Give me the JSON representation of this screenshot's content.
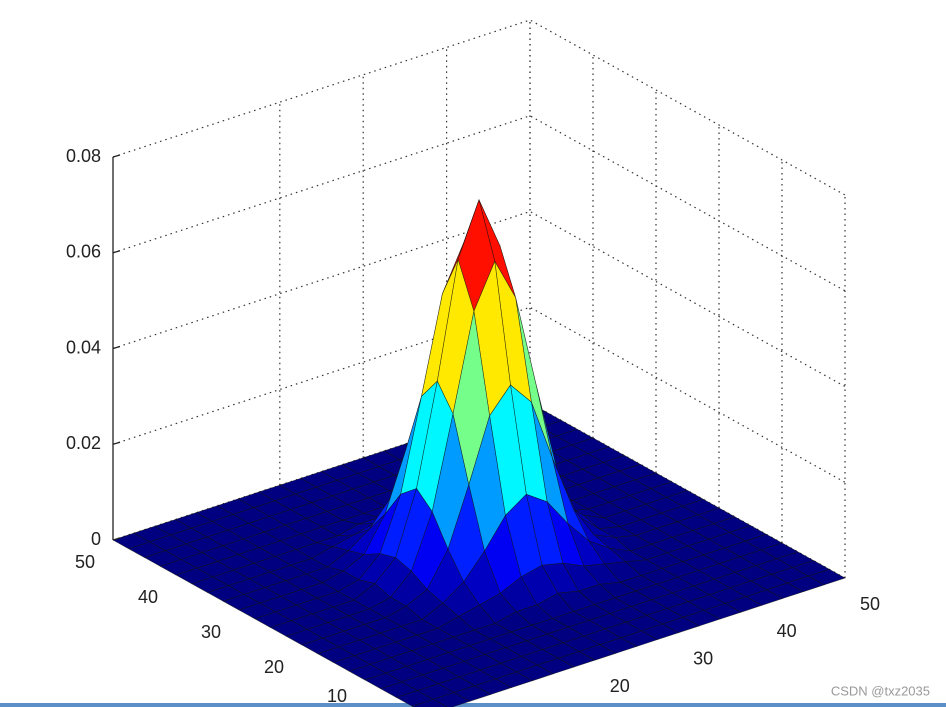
{
  "chart_data": {
    "type": "surface",
    "colormap": "jet",
    "grid": true,
    "x": [
      0,
      2.5,
      5,
      7.5,
      10,
      12.5,
      15,
      17.5,
      20,
      22.5,
      25,
      27.5,
      30,
      32.5,
      35,
      37.5,
      40,
      42.5,
      45,
      47.5,
      50
    ],
    "y": [
      0,
      2.5,
      5,
      7.5,
      10,
      12.5,
      15,
      17.5,
      20,
      22.5,
      25,
      27.5,
      30,
      32.5,
      35,
      37.5,
      40,
      42.5,
      45,
      47.5,
      50
    ],
    "z": [
      [
        0,
        0,
        0,
        0,
        0,
        0,
        0,
        0,
        0,
        0,
        0,
        0,
        0,
        0,
        0,
        0,
        0,
        0,
        0,
        0,
        0
      ],
      [
        0,
        0,
        0,
        0,
        0,
        0,
        0,
        0,
        0,
        0,
        0,
        0,
        0,
        0,
        0,
        0,
        0,
        0,
        0,
        0,
        0
      ],
      [
        0,
        0,
        0,
        0,
        0,
        0,
        0,
        0,
        0,
        0,
        0,
        0,
        0,
        0,
        0,
        0,
        0,
        0,
        0,
        0,
        0
      ],
      [
        0,
        0,
        0,
        0,
        0,
        0,
        0,
        0,
        0,
        0,
        0,
        0,
        0,
        0,
        0,
        0,
        0,
        0,
        0,
        0,
        0
      ],
      [
        0,
        0,
        0,
        0,
        0,
        0,
        0,
        0,
        0,
        0,
        0,
        0,
        0,
        0,
        0,
        0,
        0,
        0,
        0,
        0,
        0
      ],
      [
        0,
        0,
        0,
        0,
        0,
        0,
        0,
        0,
        0.001,
        0.001,
        0.002,
        0.001,
        0.001,
        0,
        0,
        0,
        0,
        0,
        0,
        0,
        0
      ],
      [
        0,
        0,
        0,
        0,
        0,
        0,
        0.001,
        0.002,
        0.003,
        0.005,
        0.006,
        0.005,
        0.003,
        0.002,
        0.001,
        0,
        0,
        0,
        0,
        0,
        0
      ],
      [
        0,
        0,
        0,
        0,
        0,
        0,
        0.002,
        0.005,
        0.01,
        0.016,
        0.019,
        0.016,
        0.01,
        0.005,
        0.002,
        0,
        0,
        0,
        0,
        0,
        0
      ],
      [
        0,
        0,
        0,
        0,
        0,
        0.001,
        0.003,
        0.01,
        0.022,
        0.035,
        0.04,
        0.035,
        0.022,
        0.01,
        0.003,
        0.001,
        0,
        0,
        0,
        0,
        0
      ],
      [
        0,
        0,
        0,
        0,
        0,
        0.001,
        0.005,
        0.016,
        0.035,
        0.055,
        0.064,
        0.055,
        0.035,
        0.016,
        0.005,
        0.001,
        0,
        0,
        0,
        0,
        0
      ],
      [
        0,
        0,
        0,
        0,
        0,
        0.002,
        0.006,
        0.019,
        0.04,
        0.064,
        0.075,
        0.064,
        0.04,
        0.019,
        0.006,
        0.002,
        0,
        0,
        0,
        0,
        0
      ],
      [
        0,
        0,
        0,
        0,
        0,
        0.001,
        0.005,
        0.016,
        0.035,
        0.055,
        0.064,
        0.055,
        0.035,
        0.016,
        0.005,
        0.001,
        0,
        0,
        0,
        0,
        0
      ],
      [
        0,
        0,
        0,
        0,
        0,
        0.001,
        0.003,
        0.01,
        0.022,
        0.035,
        0.04,
        0.035,
        0.022,
        0.01,
        0.003,
        0.001,
        0,
        0,
        0,
        0,
        0
      ],
      [
        0,
        0,
        0,
        0,
        0,
        0,
        0.002,
        0.005,
        0.01,
        0.016,
        0.019,
        0.016,
        0.01,
        0.005,
        0.002,
        0,
        0,
        0,
        0,
        0,
        0
      ],
      [
        0,
        0,
        0,
        0,
        0,
        0,
        0.001,
        0.002,
        0.003,
        0.005,
        0.006,
        0.005,
        0.003,
        0.002,
        0.001,
        0,
        0,
        0,
        0,
        0,
        0
      ],
      [
        0,
        0,
        0,
        0,
        0,
        0,
        0,
        0,
        0.001,
        0.001,
        0.002,
        0.001,
        0.001,
        0,
        0,
        0,
        0,
        0,
        0,
        0,
        0
      ],
      [
        0,
        0,
        0,
        0,
        0,
        0,
        0,
        0,
        0,
        0,
        0,
        0,
        0,
        0,
        0,
        0,
        0,
        0,
        0,
        0,
        0
      ],
      [
        0,
        0,
        0,
        0,
        0,
        0,
        0,
        0,
        0,
        0,
        0,
        0,
        0,
        0,
        0,
        0,
        0,
        0,
        0,
        0,
        0
      ],
      [
        0,
        0,
        0,
        0,
        0,
        0,
        0,
        0,
        0,
        0,
        0,
        0,
        0,
        0,
        0,
        0,
        0,
        0,
        0,
        0,
        0
      ],
      [
        0,
        0,
        0,
        0,
        0,
        0,
        0,
        0,
        0,
        0,
        0,
        0,
        0,
        0,
        0,
        0,
        0,
        0,
        0,
        0,
        0
      ],
      [
        0,
        0,
        0,
        0,
        0,
        0,
        0,
        0,
        0,
        0,
        0,
        0,
        0,
        0,
        0,
        0,
        0,
        0,
        0,
        0,
        0
      ]
    ],
    "xlim": [
      0,
      50
    ],
    "ylim": [
      0,
      50
    ],
    "zlim": [
      0,
      0.08
    ],
    "xticks": [
      20,
      30,
      40,
      50
    ],
    "yticks": [
      10,
      20,
      30,
      40,
      50
    ],
    "zticks": [
      0,
      0.02,
      0.04,
      0.06,
      0.08
    ]
  },
  "watermark": "CSDN @txz2035"
}
